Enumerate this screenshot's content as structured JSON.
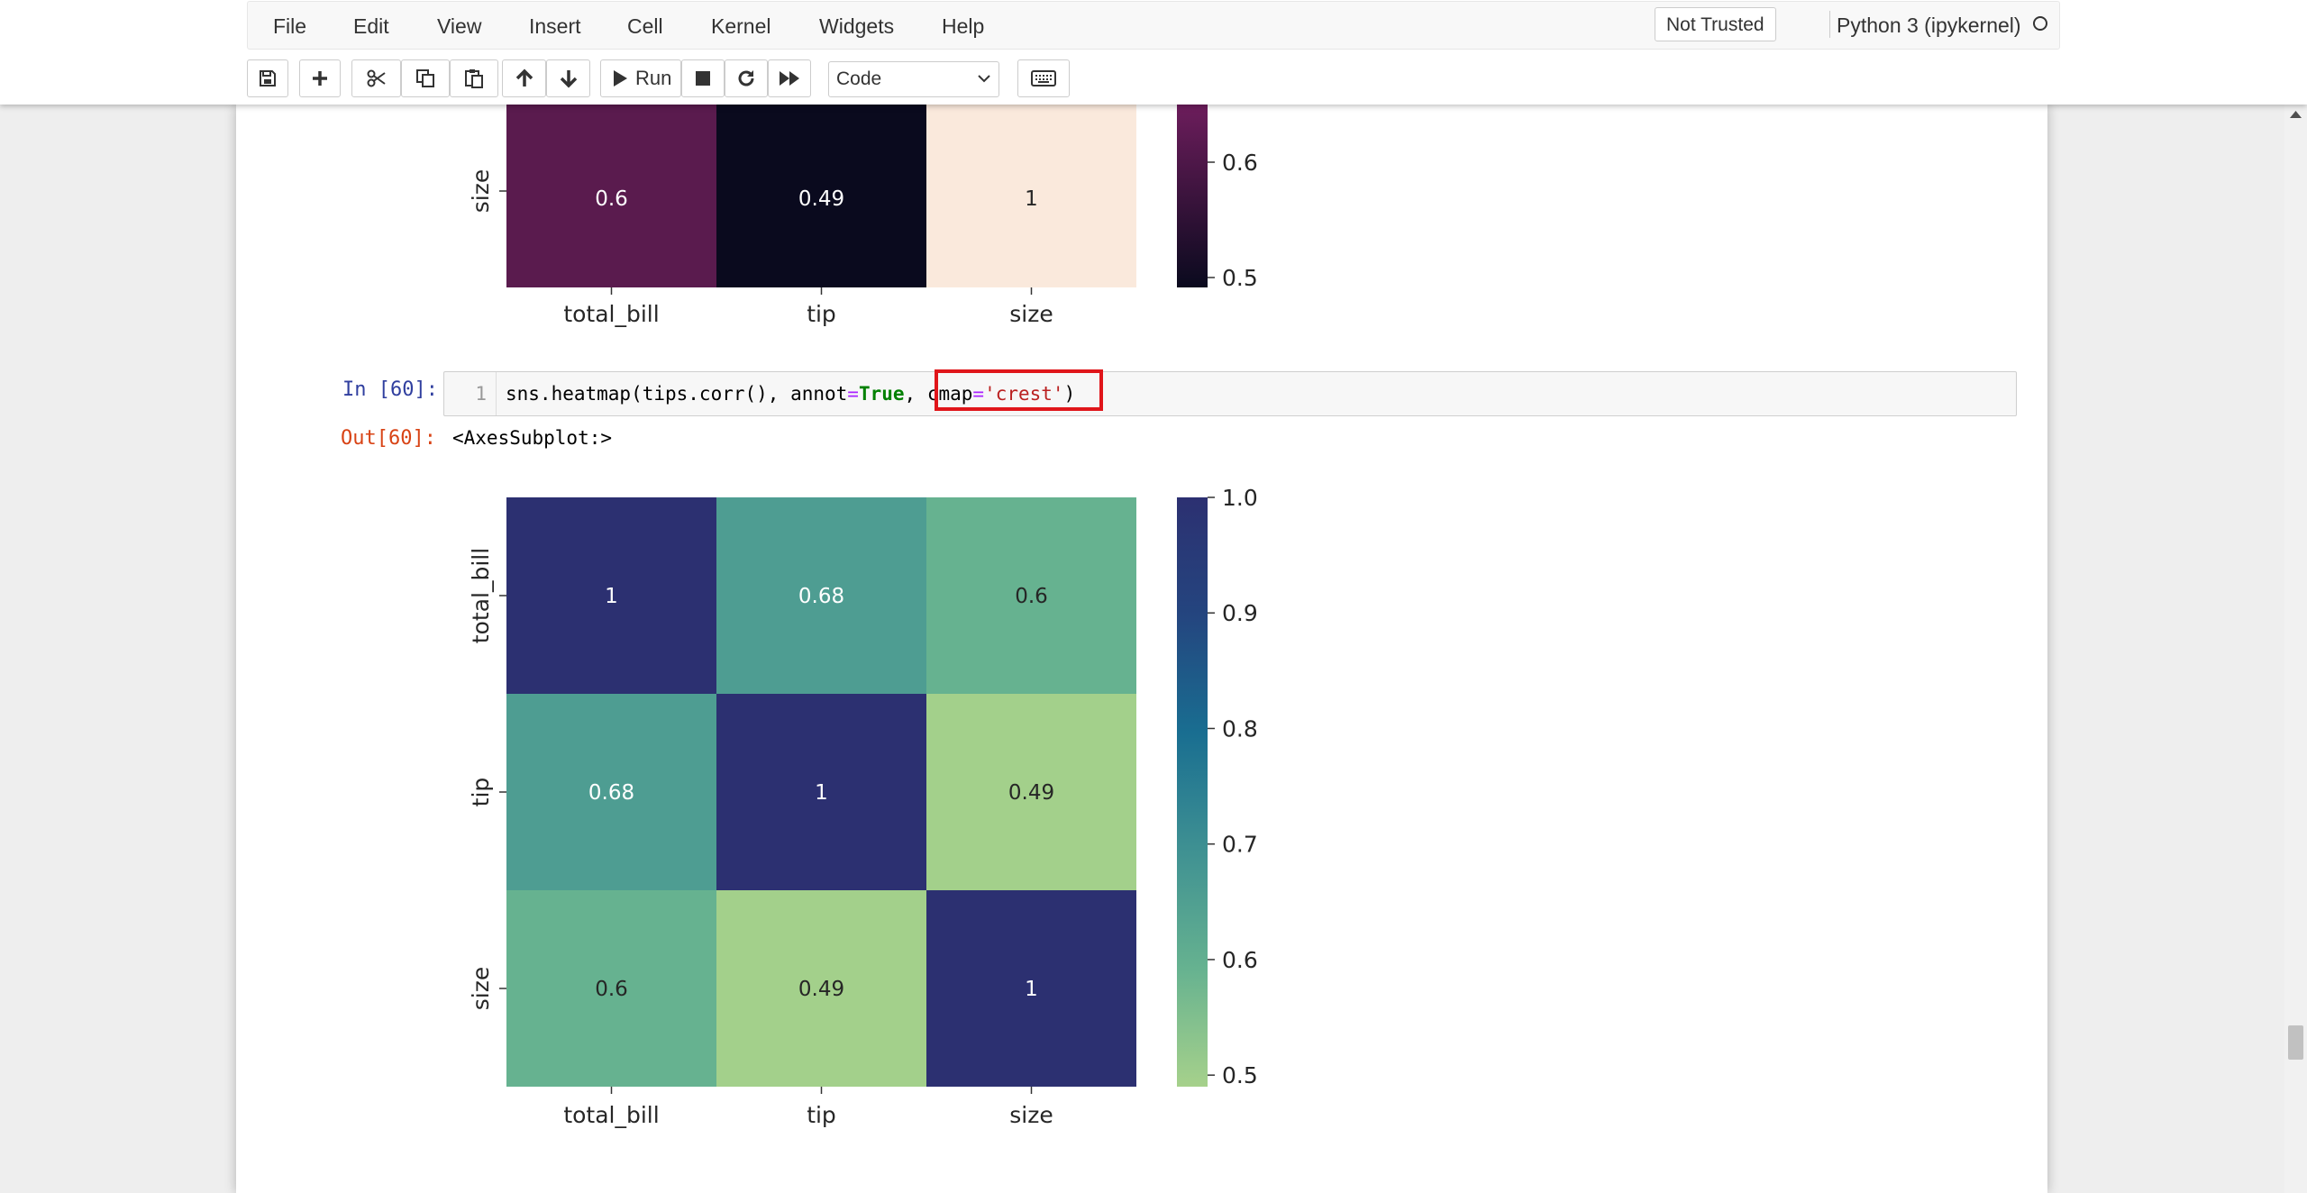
{
  "menu": [
    "File",
    "Edit",
    "View",
    "Insert",
    "Cell",
    "Kernel",
    "Widgets",
    "Help"
  ],
  "trust_label": "Not Trusted",
  "kernel_name": "Python 3 (ipykernel)",
  "toolbar": {
    "run_label": "Run",
    "cell_type": "Code",
    "icons": [
      "save-icon",
      "plus-icon",
      "cut-icon",
      "copy-icon",
      "paste-icon",
      "arrow-up-icon",
      "arrow-down-icon",
      "run-icon",
      "stop-icon",
      "restart-icon",
      "fast-forward-icon",
      "keyboard-icon"
    ]
  },
  "cell": {
    "in_prompt": "In [60]:",
    "line_number": "1",
    "code_parts": {
      "pre": "sns.heatmap(tips.corr(), annot",
      "eq1": "=",
      "true_kw": "True",
      "comma": ", ",
      "cmap": "cmap",
      "eq2": "=",
      "str": "'crest'",
      "close": ")"
    },
    "out_prompt": "Out[60]:",
    "out_text": "<AxesSubplot:>"
  },
  "chart_data": [
    {
      "type": "heatmap",
      "partial": true,
      "visible_rows": [
        "size"
      ],
      "columns": [
        "total_bill",
        "tip",
        "size"
      ],
      "values": [
        [
          0.6,
          0.49,
          1
        ]
      ],
      "labels": [
        [
          "0.6",
          "0.49",
          "1"
        ]
      ],
      "cell_colors": [
        [
          "#5a1b4e",
          "#0a0a1e",
          "#fae9dc"
        ]
      ],
      "colorbar": {
        "visible_ticks": [
          "0.6",
          "0.5"
        ],
        "colors_top_to_bottom": [
          "#6d1d5c",
          "#0a0a1e"
        ]
      }
    },
    {
      "type": "heatmap",
      "cmap": "crest",
      "rows": [
        "total_bill",
        "tip",
        "size"
      ],
      "columns": [
        "total_bill",
        "tip",
        "size"
      ],
      "values": [
        [
          1,
          0.68,
          0.6
        ],
        [
          0.68,
          1,
          0.49
        ],
        [
          0.6,
          0.49,
          1
        ]
      ],
      "labels": [
        [
          "1",
          "0.68",
          "0.6"
        ],
        [
          "0.68",
          "1",
          "0.49"
        ],
        [
          "0.6",
          "0.49",
          "1"
        ]
      ],
      "cell_colors": [
        [
          "#2c3071",
          "#4e9d92",
          "#66b290"
        ],
        [
          "#4e9d92",
          "#2c3071",
          "#a3d08b"
        ],
        [
          "#66b290",
          "#a3d08b",
          "#2c3071"
        ]
      ],
      "colorbar": {
        "range": [
          0.49,
          1.0
        ],
        "ticks": [
          "1.0",
          "0.9",
          "0.8",
          "0.7",
          "0.6",
          "0.5"
        ],
        "colors_top_to_bottom": [
          "#2c3071",
          "#24457f",
          "#196e91",
          "#3f9192",
          "#66b290",
          "#a6d18b"
        ]
      }
    }
  ]
}
